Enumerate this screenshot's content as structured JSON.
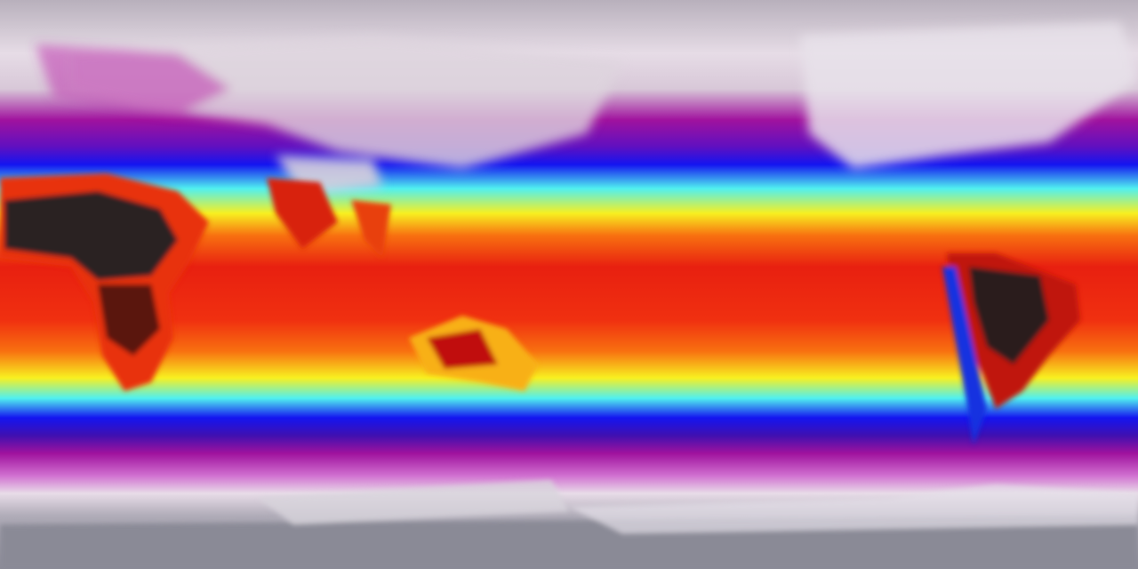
{
  "map": {
    "projection": "equirectangular",
    "palette": {
      "polar": "#8c8c98",
      "cold_light": "#e6dce6",
      "magenta": "#a0129e",
      "blue": "#1414f0",
      "cyan": "#50f0f0",
      "yellow": "#f8f020",
      "orange": "#f87010",
      "red": "#e82010",
      "hot_land": "#201414"
    }
  }
}
